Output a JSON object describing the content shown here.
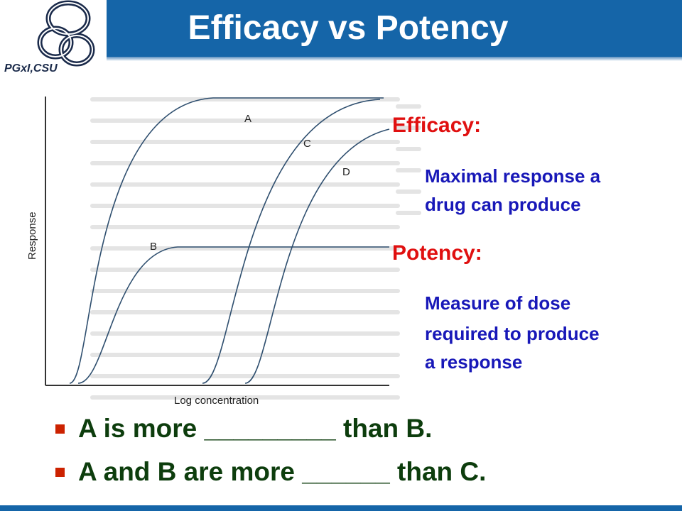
{
  "header": {
    "title": "Efficacy vs Potency",
    "logo_text": "PGxI,CSU"
  },
  "diagram": {
    "curve_labels": [
      "A",
      "B",
      "C",
      "D"
    ],
    "y_axis_label": "Response",
    "x_axis_label": "Log concentration"
  },
  "definitions": {
    "efficacy_heading": "Efficacy:",
    "efficacy_line1": "Maximal response a",
    "efficacy_line2": "drug can produce",
    "potency_heading": "Potency:",
    "potency_line1": "Measure of dose",
    "potency_line2": "required to produce",
    "potency_line3": "a response"
  },
  "bullets": [
    "A is more _________ than B.",
    "A and B are more ______ than C."
  ],
  "colors": {
    "header_bg": "#1565a8",
    "heading_red": "#e01010",
    "definition_blue": "#1818b8",
    "bullet_text": "#0d3d0d",
    "bullet_square": "#cc2200"
  }
}
